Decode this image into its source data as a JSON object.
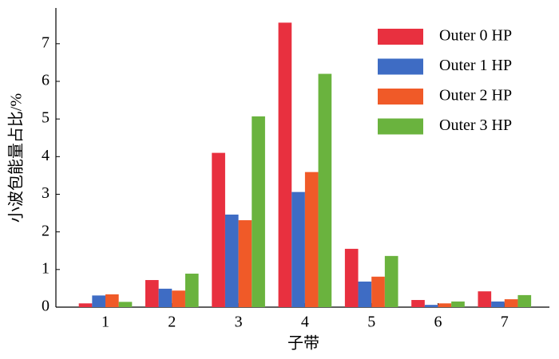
{
  "chart_data": {
    "type": "bar",
    "x_label": "子带",
    "y_label": "小波包能量占比/%",
    "categories": [
      "1",
      "2",
      "3",
      "4",
      "5",
      "6",
      "7"
    ],
    "series": [
      {
        "name": "Outer 0 HP",
        "color": "#e8303f",
        "values": [
          0.1,
          0.72,
          4.1,
          7.56,
          1.55,
          0.19,
          0.42
        ]
      },
      {
        "name": "Outer 1 HP",
        "color": "#3e6cc4",
        "values": [
          0.31,
          0.49,
          2.46,
          3.06,
          0.68,
          0.06,
          0.15
        ]
      },
      {
        "name": "Outer 2 HP",
        "color": "#f05a28",
        "values": [
          0.34,
          0.44,
          2.31,
          3.59,
          0.81,
          0.1,
          0.21
        ]
      },
      {
        "name": "Outer 3 HP",
        "color": "#6ab33e",
        "values": [
          0.14,
          0.89,
          5.07,
          6.2,
          1.36,
          0.15,
          0.32
        ]
      }
    ],
    "ylim": [
      0,
      7.95
    ],
    "yticks": [
      0,
      1,
      2,
      3,
      4,
      5,
      6,
      7
    ],
    "legend": "upper-right"
  }
}
